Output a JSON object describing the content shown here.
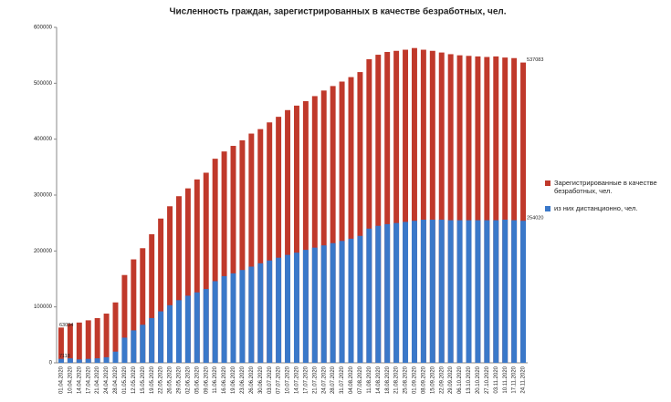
{
  "chart_data": {
    "type": "bar",
    "title": "Численность граждан, зарегистрированных в качестве безработных, чел.",
    "categories": [
      "01.04.2020",
      "10.04.2020",
      "14.04.2020",
      "17.04.2020",
      "21.04.2020",
      "24.04.2020",
      "28.04.2020",
      "01.05.2020",
      "12.05.2020",
      "15.05.2020",
      "19.05.2020",
      "22.05.2020",
      "26.05.2020",
      "29.05.2020",
      "02.06.2020",
      "05.06.2020",
      "09.06.2020",
      "11.06.2020",
      "16.06.2020",
      "19.06.2020",
      "23.06.2020",
      "26.06.2020",
      "30.06.2020",
      "03.07.2020",
      "07.07.2020",
      "10.07.2020",
      "14.07.2020",
      "17.07.2020",
      "21.07.2020",
      "24.07.2020",
      "28.07.2020",
      "31.07.2020",
      "04.08.2020",
      "07.08.2020",
      "11.08.2020",
      "14.08.2020",
      "18.08.2020",
      "21.08.2020",
      "25.08.2020",
      "01.09.2020",
      "08.09.2020",
      "15.09.2020",
      "22.09.2020",
      "29.09.2020",
      "06.10.2020",
      "13.10.2020",
      "20.10.2020",
      "27.10.2020",
      "03.11.2020",
      "10.11.2020",
      "17.11.2020",
      "24.11.2020"
    ],
    "series": [
      {
        "name": "Зарегистрированные в качестве безработных, чел.",
        "color": "#c0392b",
        "values": [
          63034,
          70000,
          72000,
          76000,
          80000,
          88000,
          108000,
          157000,
          185000,
          205000,
          230000,
          258000,
          280000,
          298000,
          312000,
          328000,
          340000,
          365000,
          378000,
          388000,
          398000,
          410000,
          418000,
          430000,
          440000,
          452000,
          460000,
          468000,
          477000,
          487000,
          495000,
          503000,
          511000,
          520000,
          543000,
          551000,
          556000,
          558000,
          560000,
          563000,
          560000,
          558000,
          555000,
          552000,
          550000,
          549000,
          548000,
          547000,
          548000,
          546000,
          545000,
          537083
        ]
      },
      {
        "name": "из них дистанционно, чел.",
        "color": "#3a78c9",
        "values": [
          7118,
          8000,
          6000,
          7000,
          8000,
          10000,
          20000,
          45000,
          58000,
          68000,
          80000,
          92000,
          103000,
          112000,
          120000,
          126000,
          132000,
          146000,
          155000,
          160000,
          166000,
          172000,
          178000,
          183000,
          188000,
          193000,
          197000,
          202000,
          206000,
          210000,
          214000,
          218000,
          222000,
          227000,
          240000,
          245000,
          248000,
          250000,
          252000,
          254000,
          256000,
          256000,
          256000,
          255000,
          255000,
          255000,
          255000,
          255000,
          255000,
          256000,
          255000,
          254020
        ]
      }
    ],
    "ylim": [
      0,
      600000
    ],
    "yticks": [
      0,
      100000,
      200000,
      300000,
      400000,
      500000,
      600000
    ],
    "grid": false
  }
}
